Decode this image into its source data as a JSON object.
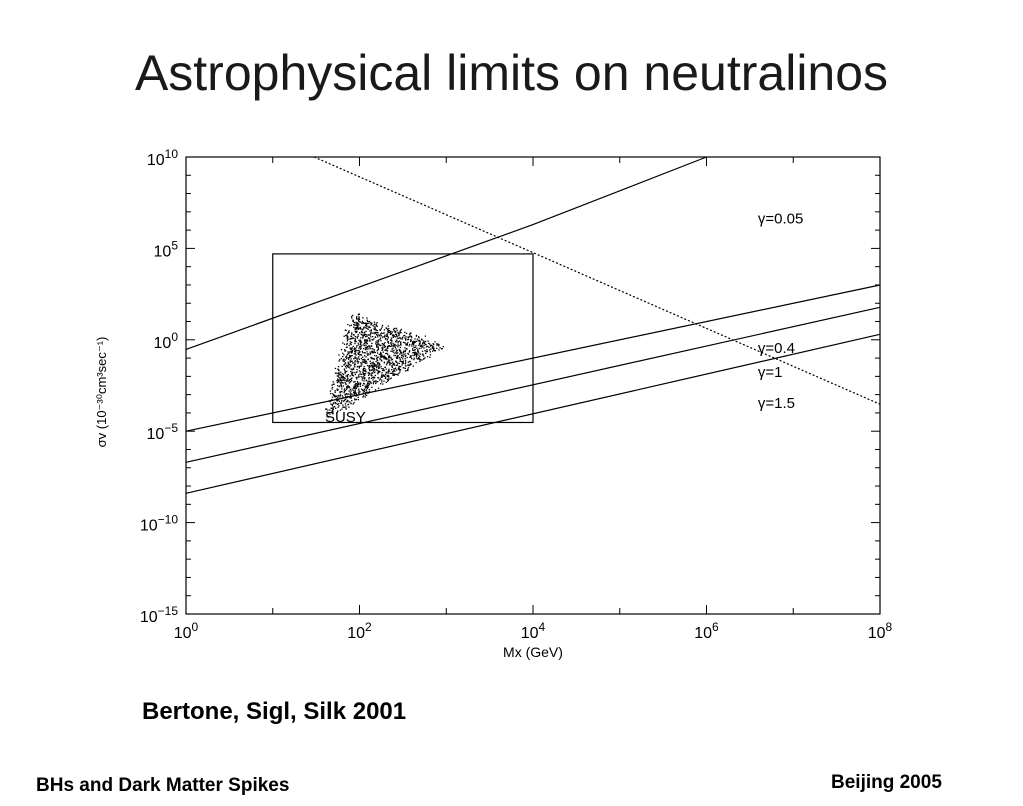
{
  "slide": {
    "title": "Astrophysical limits on neutralinos",
    "citation": "Bertone, Sigl, Silk 2001",
    "footer_left": "BHs and Dark Matter Spikes",
    "footer_right": "Beijing 2005"
  },
  "chart_data": {
    "type": "line",
    "xlabel": "Mx (GeV)",
    "ylabel": "σv (10⁻³⁰cm³sec⁻¹)",
    "x_scale": "log",
    "y_scale": "log",
    "xlim": [
      1,
      100000000
    ],
    "ylim": [
      1e-15,
      10000000000.0
    ],
    "x_ticks": [
      {
        "value": 1,
        "base": "10",
        "exp": "0"
      },
      {
        "value": 100,
        "base": "10",
        "exp": "2"
      },
      {
        "value": 10000,
        "base": "10",
        "exp": "4"
      },
      {
        "value": 1000000,
        "base": "10",
        "exp": "6"
      },
      {
        "value": 100000000,
        "base": "10",
        "exp": "8"
      }
    ],
    "y_ticks": [
      {
        "value": 10000000000.0,
        "base": "10",
        "exp": "10"
      },
      {
        "value": 100000.0,
        "base": "10",
        "exp": "5"
      },
      {
        "value": 1,
        "base": "10",
        "exp": "0"
      },
      {
        "value": 1e-05,
        "base": "10",
        "exp": "−5"
      },
      {
        "value": 1e-10,
        "base": "10",
        "exp": "−10"
      },
      {
        "value": 1e-15,
        "base": "10",
        "exp": "−15"
      }
    ],
    "series": [
      {
        "name": "γ=0.05",
        "style": "solid",
        "x": [
          1,
          10000,
          1000000
        ],
        "y": [
          0.3,
          2000000,
          10000000000
        ],
        "label_at": [
          3000000,
          5000000
        ]
      },
      {
        "name": "γ=0.4",
        "style": "solid",
        "x": [
          1,
          100000000
        ],
        "y": [
          1e-05,
          1000
        ],
        "label_at": [
          3000000,
          0.4
        ]
      },
      {
        "name": "γ=1",
        "style": "solid",
        "x": [
          1,
          100000000
        ],
        "y": [
          2e-07,
          60
        ],
        "label_at": [
          3000000,
          0.02
        ]
      },
      {
        "name": "γ=1.5",
        "style": "solid",
        "x": [
          1,
          100000000
        ],
        "y": [
          4e-09,
          2
        ],
        "label_at": [
          3000000,
          0.0004
        ]
      },
      {
        "name": "",
        "style": "dotted",
        "x": [
          30,
          100000000
        ],
        "y": [
          10000000000,
          0.0003
        ]
      }
    ],
    "susy_region": {
      "label": "SUSY",
      "x_range": [
        10,
        10000
      ],
      "y_range": [
        3e-05,
        50000
      ],
      "label_at": [
        40,
        6e-05
      ]
    }
  }
}
